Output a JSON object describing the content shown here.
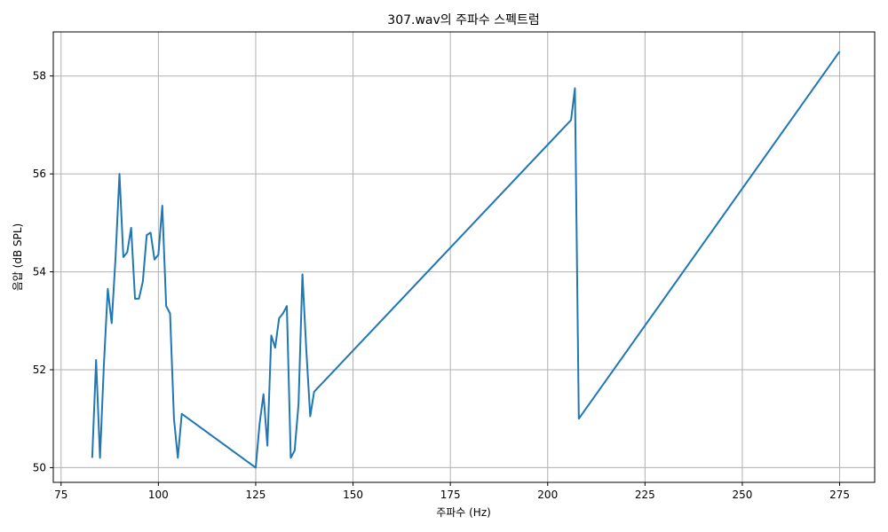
{
  "chart_data": {
    "type": "line",
    "title": "307.wav의 주파수 스펙트럼",
    "xlabel": "주파수 (Hz)",
    "ylabel": "음압 (dB SPL)",
    "xlim": [
      73,
      284
    ],
    "ylim": [
      49.7,
      58.9
    ],
    "xticks": [
      75,
      100,
      125,
      150,
      175,
      200,
      225,
      250,
      275
    ],
    "yticks": [
      50,
      52,
      54,
      56,
      58
    ],
    "grid": true,
    "series_color": "#1f77b4",
    "series": [
      {
        "x": [
          83,
          84,
          85,
          86,
          87,
          88,
          89,
          90,
          91,
          92,
          93,
          94,
          95,
          96,
          97,
          98,
          99,
          100,
          101,
          102,
          103,
          104,
          105,
          106,
          125,
          126,
          127,
          128,
          129,
          130,
          131,
          132,
          133,
          134,
          135,
          136,
          137,
          138,
          139,
          140,
          206,
          207,
          208,
          275
        ],
        "y": [
          50.2,
          52.2,
          50.2,
          52.1,
          53.65,
          52.95,
          54.3,
          56.0,
          54.3,
          54.4,
          54.9,
          53.45,
          53.45,
          53.8,
          54.75,
          54.8,
          54.25,
          54.35,
          55.35,
          53.3,
          53.15,
          51.0,
          50.2,
          51.1,
          50.0,
          50.9,
          51.5,
          50.45,
          52.7,
          52.45,
          53.05,
          53.15,
          53.3,
          50.2,
          50.35,
          51.3,
          53.95,
          52.4,
          51.05,
          51.55,
          57.1,
          57.75,
          51.0,
          58.5
        ]
      }
    ]
  }
}
